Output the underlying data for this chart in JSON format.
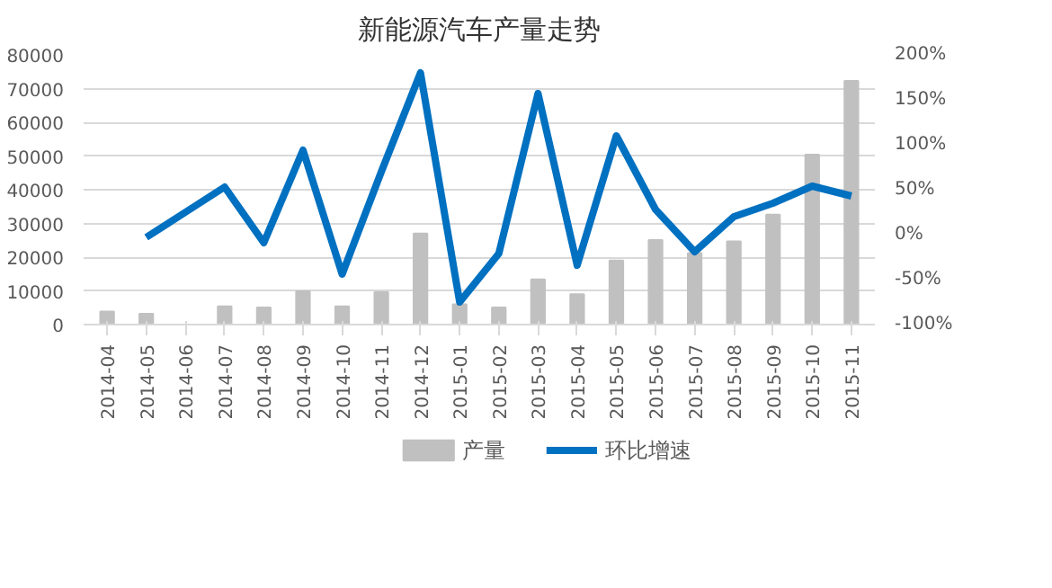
{
  "chart_data": {
    "type": "bar",
    "title": "新能源汽车产量走势",
    "categories": [
      "2014-04",
      "2014-05",
      "2014-06",
      "2014-07",
      "2014-08",
      "2014-09",
      "2014-10",
      "2014-11",
      "2014-12",
      "2015-01",
      "2015-02",
      "2015-03",
      "2015-04",
      "2015-05",
      "2015-06",
      "2015-07",
      "2015-08",
      "2015-09",
      "2015-10",
      "2015-11"
    ],
    "series": [
      {
        "name": "产量",
        "type": "bar",
        "color": "#c0c0c0",
        "values": [
          3900,
          3200,
          null,
          5400,
          5100,
          9900,
          5400,
          9600,
          27000,
          6000,
          5100,
          13400,
          9000,
          19000,
          25100,
          21200,
          24700,
          32600,
          50400,
          72300
        ]
      },
      {
        "name": "环比增速",
        "type": "line",
        "axis": "y2",
        "color": "#0070c0",
        "values": [
          null,
          -3,
          25,
          53,
          -9,
          94,
          -44,
          70,
          180,
          -75,
          -21,
          157,
          -34,
          110,
          28,
          -19,
          20,
          35,
          54,
          43
        ]
      }
    ],
    "ylim": [
      0,
      80000
    ],
    "yticks": [
      0,
      10000,
      20000,
      30000,
      40000,
      50000,
      60000,
      70000,
      80000
    ],
    "y2lim": [
      -100,
      200
    ],
    "y2ticks": [
      {
        "value": -100,
        "label": "-100%"
      },
      {
        "value": -50,
        "label": "-50%"
      },
      {
        "value": 0,
        "label": "0%"
      },
      {
        "value": 50,
        "label": "50%"
      },
      {
        "value": 100,
        "label": "100%"
      },
      {
        "value": 150,
        "label": "150%"
      },
      {
        "value": 200,
        "label": "200%"
      }
    ],
    "grid": "y",
    "legend": "bottom",
    "marker": "none",
    "line_style": "solid"
  }
}
